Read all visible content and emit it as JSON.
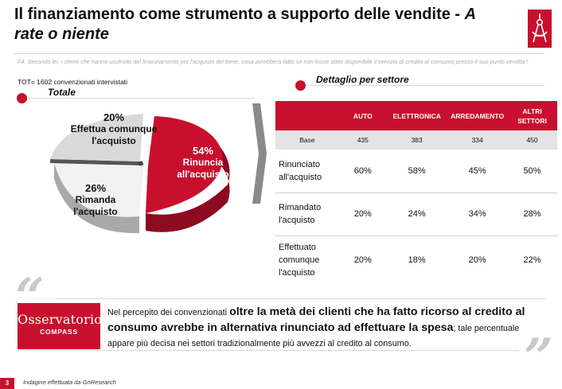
{
  "header": {
    "title_main": "Il finanziamento come strumento a supporto delle vendite -",
    "title_italic": "A rate o niente"
  },
  "question": "F4. Secondo lei, i clienti che hanno usufruito del finanziamento per l'acquisto del bene, cosa avrebbero fatto se non fosse stato disponibile il servizio di credito al consumo presso il suo punto vendita?",
  "sample": "TOT= 1602 convenzionati intervistati",
  "sections": {
    "totale": "Totale",
    "dettaglio": "Dettaglio per settore"
  },
  "pie": {
    "slices": [
      {
        "pct": "54%",
        "label": "Rinuncia all'acquisto",
        "value": 54,
        "color": "#c8102e"
      },
      {
        "pct": "26%",
        "label": "Rimanda l'acquisto",
        "value": 26,
        "color": "#f0f0f0"
      },
      {
        "pct": "20%",
        "label": "Effettua comunque l'acquisto",
        "value": 20,
        "color": "#d9d9d9"
      }
    ],
    "label_lines": {
      "s0_l1": "Rinuncia",
      "s0_l2": "all'acquisto",
      "s1_l1": "Rimanda",
      "s1_l2": "l'acquisto",
      "s2_l1": "Effettua comunque",
      "s2_l2": "l'acquisto"
    }
  },
  "table": {
    "headers": [
      "AUTO",
      "ELETTRONICA",
      "ARREDAMENTO",
      "ALTRI SETTORI"
    ],
    "headers_split": {
      "altri_l1": "ALTRI",
      "altri_l2": "SETTORI"
    },
    "base_label": "Base",
    "base": [
      "435",
      "383",
      "334",
      "450"
    ],
    "rows": [
      {
        "l1": "Rinunciato",
        "l2": "all'acquisto",
        "l3": "",
        "values": [
          "60%",
          "58%",
          "45%",
          "50%"
        ]
      },
      {
        "l1": "Rimandato",
        "l2": "l'acquisto",
        "l3": "",
        "values": [
          "20%",
          "24%",
          "34%",
          "28%"
        ]
      },
      {
        "l1": "Effettuato",
        "l2": "comunque",
        "l3": "l'acquisto",
        "values": [
          "20%",
          "18%",
          "20%",
          "22%"
        ]
      }
    ]
  },
  "brand": {
    "name": "Osservatorio",
    "sub": "COMPASS",
    "accent": "#c8102e"
  },
  "summary": {
    "p1": "Nel percepito dei convenzionati ",
    "p2": "oltre la metà dei clienti che ha fatto ricorso al credito al consumo avrebbe in alternativa rinunciato ad effettuare la spesa",
    "p3": "; tale percentuale appare più decisa nei settori tradizionalmente più avvezzi al credito al consumo."
  },
  "footer": {
    "page": "3",
    "source": "Indagine effettuata da GnResearch"
  }
}
